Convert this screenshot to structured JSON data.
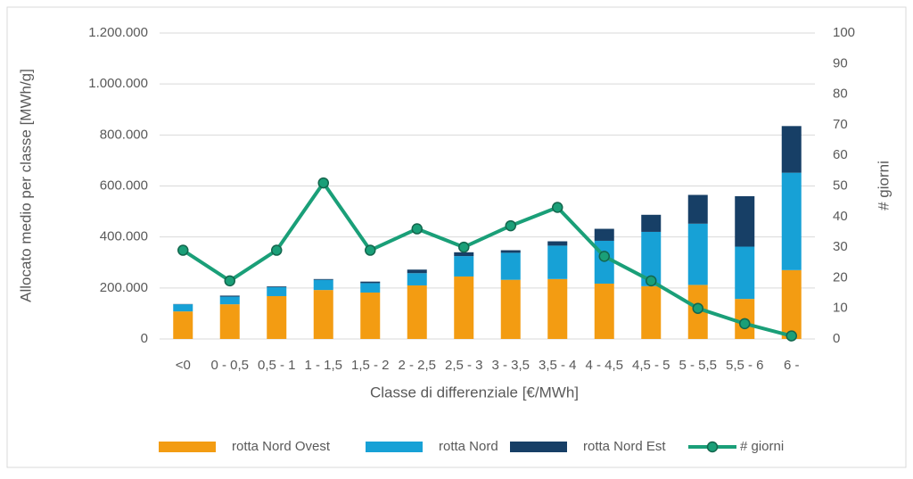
{
  "chart_data": {
    "type": "bar",
    "stacked": true,
    "xlabel": "Classe di differenziale [€/MWh]",
    "ylabel": "Allocato medio per classe [MWh/g]",
    "y2label": "# giorni",
    "categories": [
      "<0",
      "0 - 0,5",
      "0,5 - 1",
      "1 - 1,5",
      "1,5 - 2",
      "2 - 2,5",
      "2,5 - 3",
      "3 - 3,5",
      "3,5 - 4",
      "4 - 4,5",
      "4,5 - 5",
      "5 - 5,5",
      "5,5 - 6",
      "6 -"
    ],
    "series": [
      {
        "name": "rotta Nord Ovest",
        "type": "bar",
        "color": "#f39c12",
        "values": [
          108000,
          136000,
          168000,
          192000,
          182000,
          210000,
          245000,
          232000,
          235000,
          217000,
          207000,
          212000,
          157000,
          270000
        ]
      },
      {
        "name": "rotta Nord",
        "type": "bar",
        "color": "#17a1d6",
        "values": [
          28000,
          30000,
          35000,
          40000,
          37000,
          48000,
          80000,
          106000,
          131000,
          168000,
          213000,
          240000,
          205000,
          382000
        ]
      },
      {
        "name": "rotta Nord Est",
        "type": "bar",
        "color": "#173f66",
        "values": [
          1000,
          4000,
          3000,
          3000,
          6000,
          14000,
          15000,
          10000,
          17000,
          47000,
          67000,
          113000,
          198000,
          183000
        ]
      },
      {
        "name": "# giorni",
        "type": "line",
        "axis": "y2",
        "color": "#1a9f78",
        "values": [
          29,
          19,
          29,
          51,
          29,
          36,
          30,
          37,
          43,
          27,
          19,
          10,
          5,
          1
        ]
      }
    ],
    "ylim": [
      0,
      1200000
    ],
    "yticks": [
      0,
      {
        "value": 200000,
        "label": "200.000"
      },
      {
        "value": 400000,
        "label": "400.000"
      },
      {
        "value": 600000,
        "label": "600.000"
      },
      {
        "value": 800000,
        "label": "800.000"
      },
      {
        "value": 1000000,
        "label": "1.000.000"
      },
      {
        "value": 1200000,
        "label": "1.200.000"
      }
    ],
    "y2lim": [
      0,
      100
    ],
    "y2ticks": [
      0,
      10,
      20,
      30,
      40,
      50,
      60,
      70,
      80,
      90,
      100
    ],
    "grid": true,
    "legend": "bottom"
  }
}
